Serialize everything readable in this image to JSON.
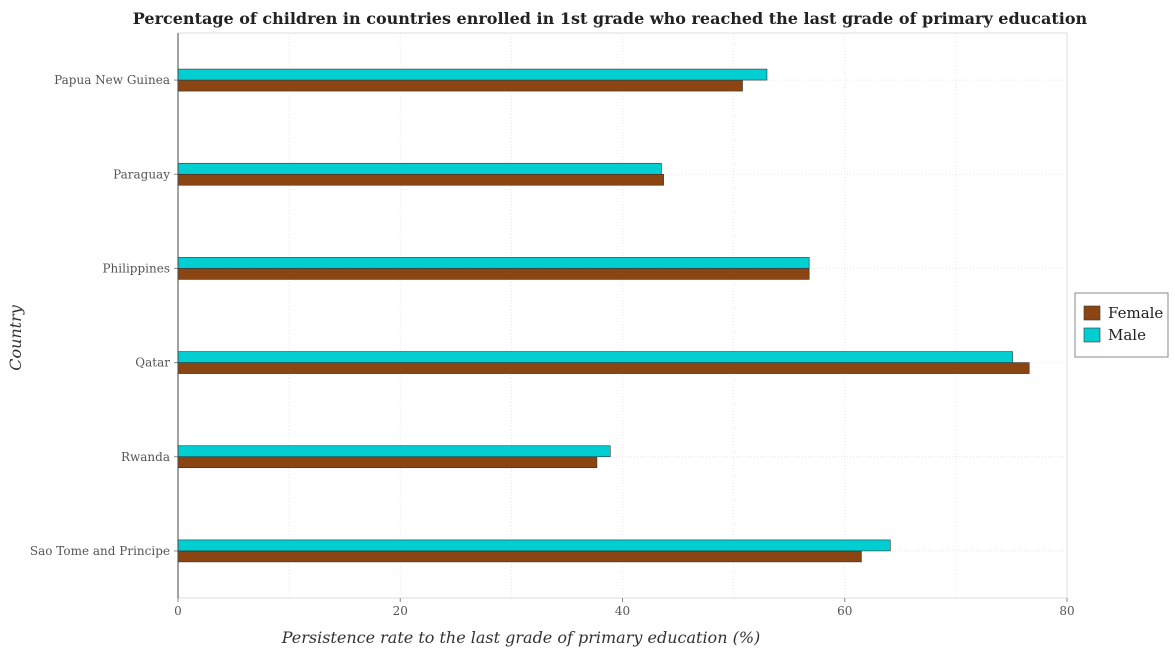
{
  "chart_data": {
    "type": "bar",
    "orientation": "horizontal",
    "title": "Percentage of children in countries enrolled in 1st grade who reached the last grade of primary education",
    "xlabel": "Persistence rate to the last grade of primary education (%)",
    "ylabel": "Country",
    "xlim": [
      0,
      80
    ],
    "xticks": [
      "0",
      "20",
      "40",
      "60",
      "80"
    ],
    "grid": true,
    "legend_position": "right",
    "categories": [
      "Papua New Guinea",
      "Paraguay",
      "Philippines",
      "Qatar",
      "Rwanda",
      "Sao Tome and Principe"
    ],
    "series": [
      {
        "name": "Female",
        "color": "#8B4513",
        "values": [
          50.8,
          43.7,
          56.8,
          76.6,
          37.7,
          61.5
        ]
      },
      {
        "name": "Male",
        "color": "#00CED1",
        "values": [
          53.0,
          43.5,
          56.8,
          75.1,
          38.9,
          64.1
        ]
      }
    ]
  }
}
